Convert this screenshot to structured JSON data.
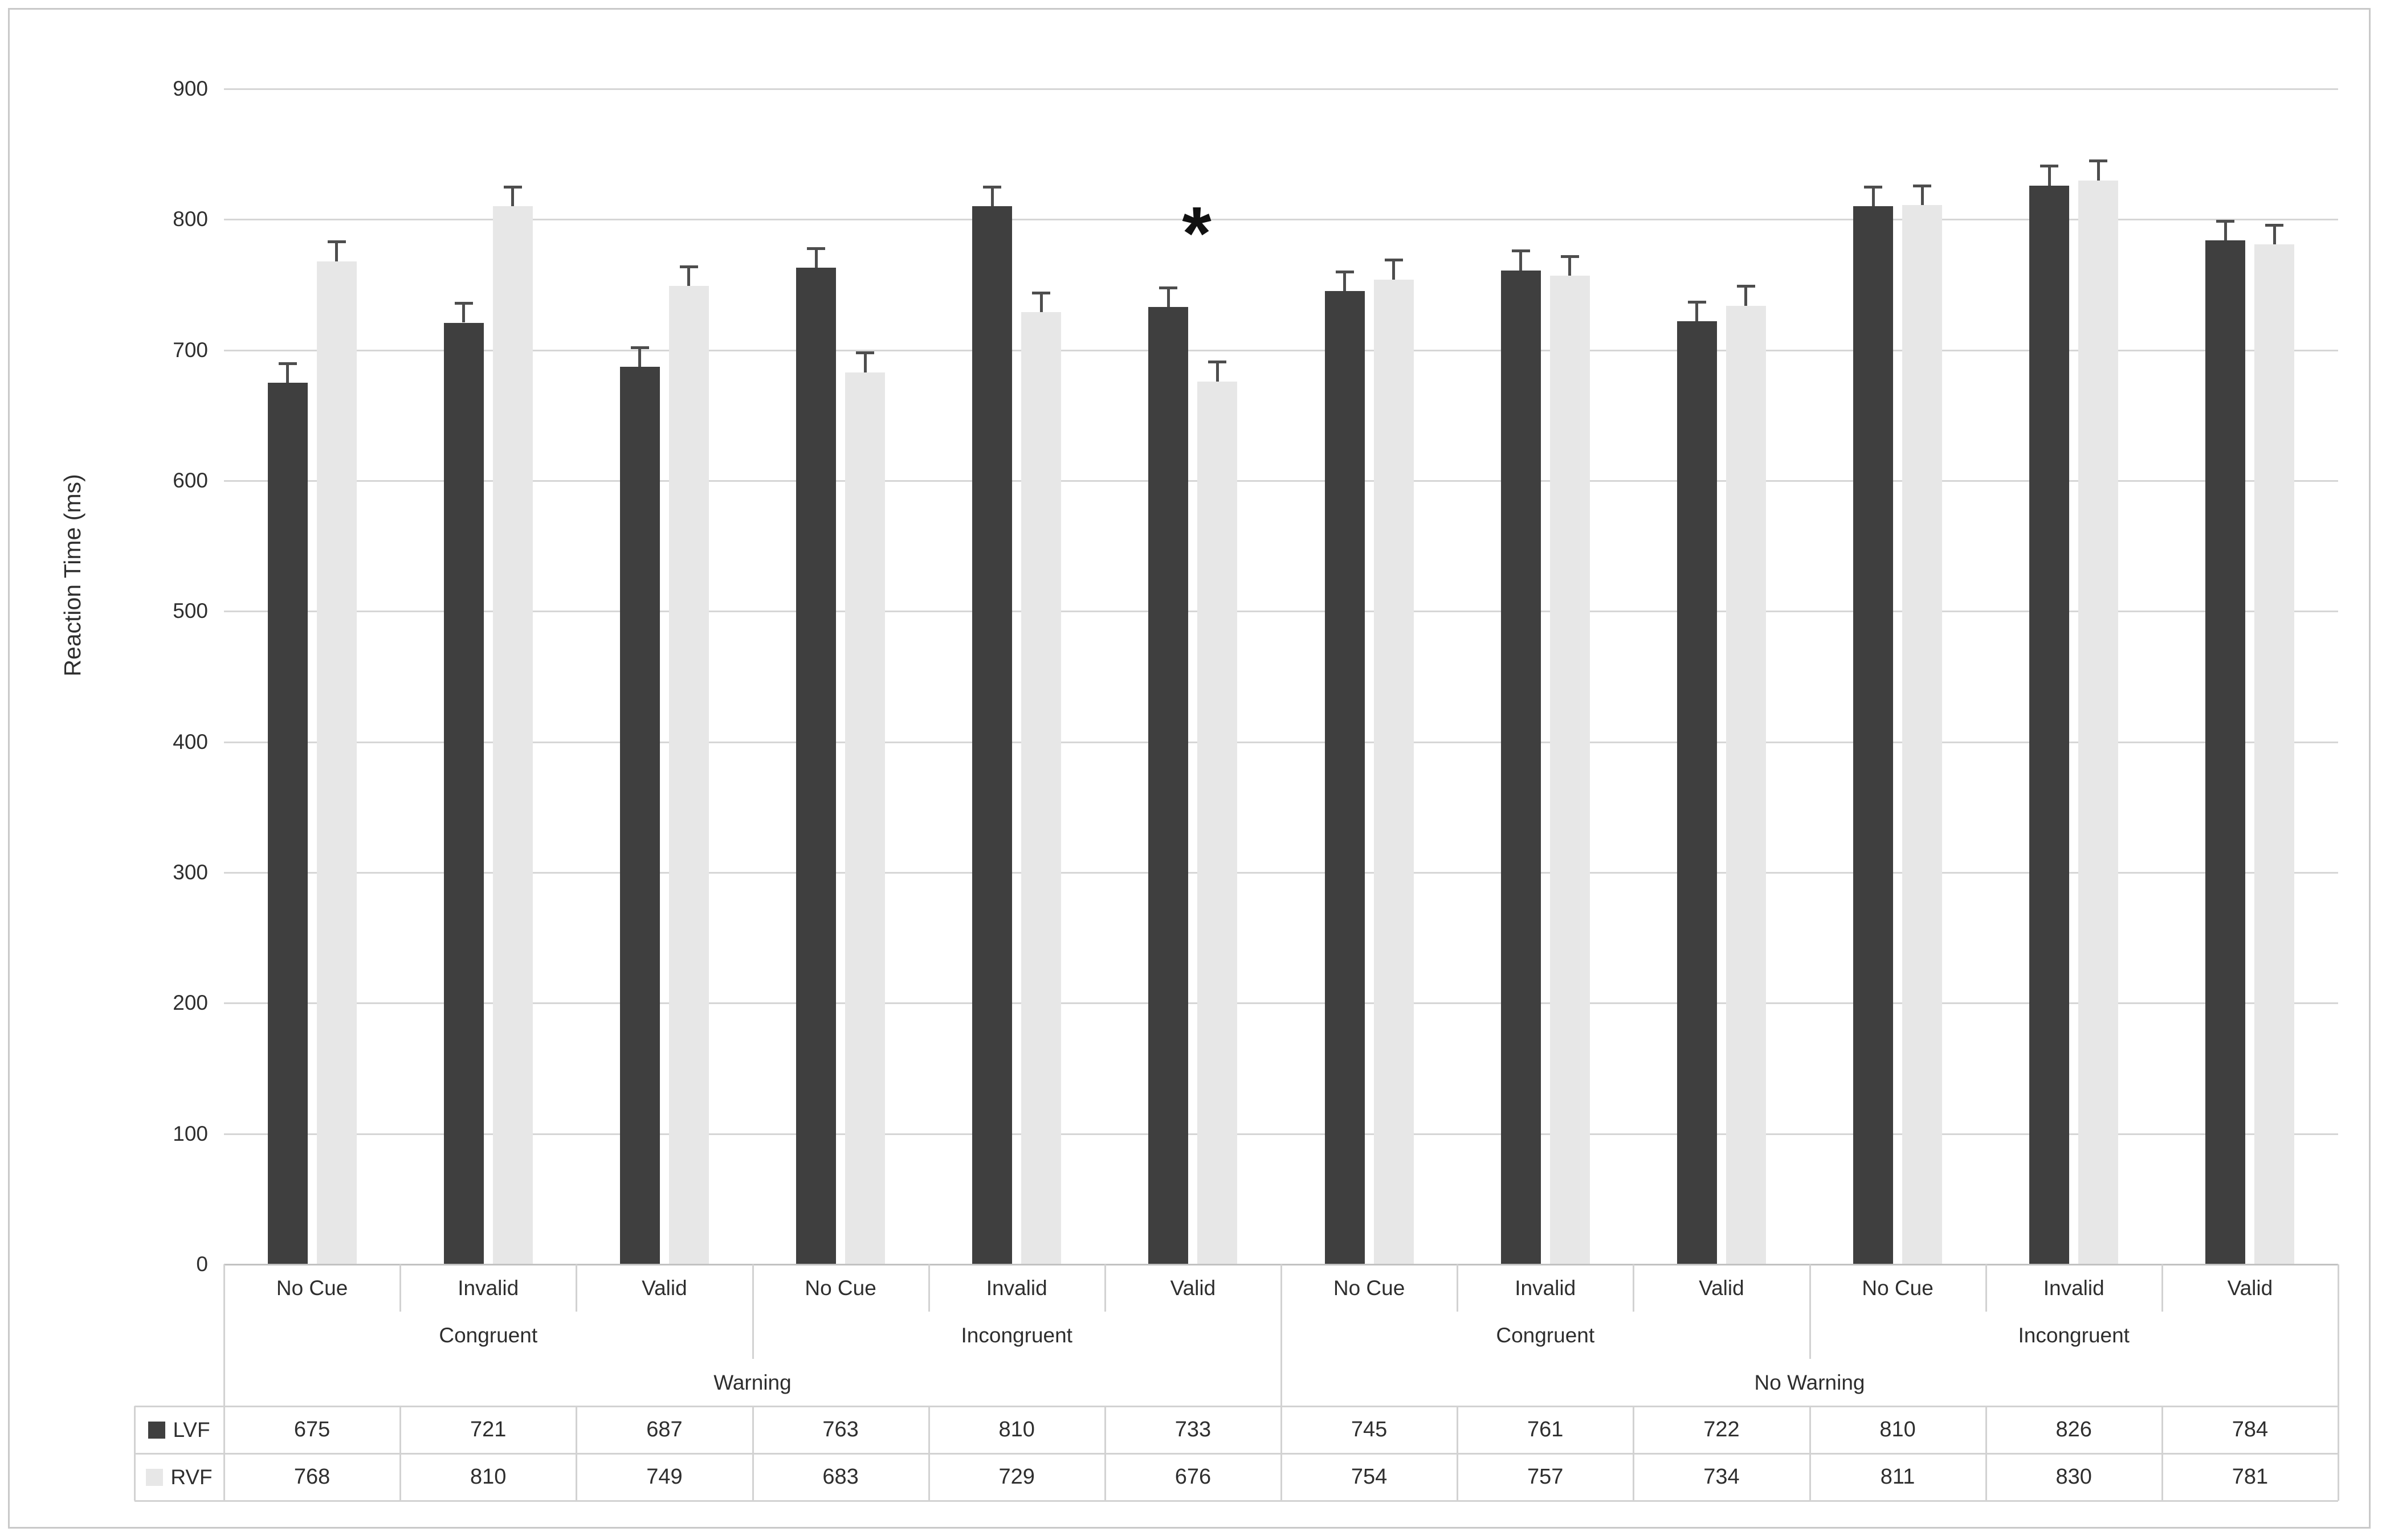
{
  "figure": {
    "y_axis_title": "Reaction Time (ms)",
    "annotation_star": "*"
  },
  "chart_data": {
    "type": "bar",
    "title": "",
    "xlabel": "",
    "ylabel": "Reaction Time (ms)",
    "ylim": [
      0,
      900
    ],
    "ytick_step": 100,
    "yticks": [
      900,
      800,
      700,
      600,
      500,
      400,
      300,
      200,
      100,
      0
    ],
    "grid": true,
    "error_bar_ms": 15,
    "legend_position": "table-left-rows",
    "series": [
      {
        "name": "LVF",
        "color": "#3f3f3f",
        "values": [
          675,
          721,
          687,
          763,
          810,
          733,
          745,
          761,
          722,
          810,
          826,
          784
        ]
      },
      {
        "name": "RVF",
        "color": "#e7e7e7",
        "values": [
          768,
          810,
          749,
          683,
          729,
          676,
          754,
          757,
          734,
          811,
          830,
          781
        ]
      }
    ],
    "categories_level1": [
      "No Cue",
      "Invalid",
      "Valid",
      "No Cue",
      "Invalid",
      "Valid",
      "No Cue",
      "Invalid",
      "Valid",
      "No Cue",
      "Invalid",
      "Valid"
    ],
    "categories_level2": [
      {
        "label": "Congruent",
        "span": 3
      },
      {
        "label": "Incongruent",
        "span": 3
      },
      {
        "label": "Congruent",
        "span": 3
      },
      {
        "label": "Incongruent",
        "span": 3
      }
    ],
    "categories_level3": [
      {
        "label": "Warning",
        "span": 6
      },
      {
        "label": "No Warning",
        "span": 6
      }
    ],
    "annotation": {
      "text": "*",
      "group_index": 5,
      "y_value": 790
    },
    "table": {
      "row_labels": [
        "LVF",
        "RVF"
      ],
      "rows": [
        [
          675,
          721,
          687,
          763,
          810,
          733,
          745,
          761,
          722,
          810,
          826,
          784
        ],
        [
          768,
          810,
          749,
          683,
          729,
          676,
          754,
          757,
          734,
          811,
          830,
          781
        ]
      ]
    }
  },
  "colors": {
    "lvf_bar": "#3f3f3f",
    "rvf_bar": "#e7e7e7",
    "gridline": "#d6d6d6",
    "axis_line": "#c2c2c2",
    "table_border": "#d2d2d2",
    "error_bar": "#4d4d4d",
    "text": "#2e2e2e",
    "frame_border": "#c9c9c9",
    "background": "#ffffff"
  }
}
